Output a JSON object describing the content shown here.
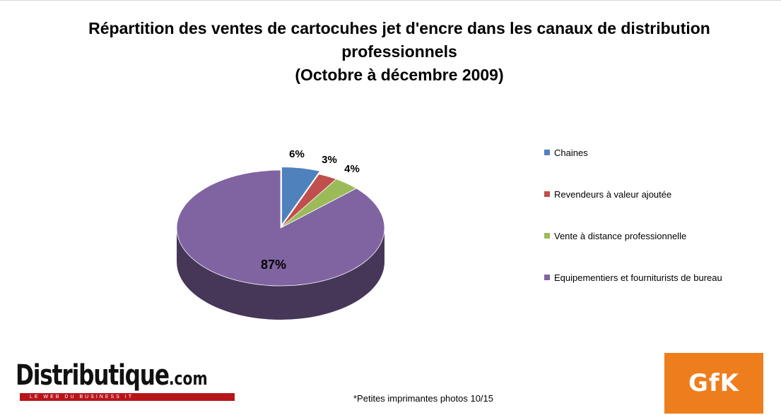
{
  "chart_data": {
    "type": "pie",
    "title_lines": [
      "Répartition des ventes de cartocuhes jet d'encre dans les canaux de distribution",
      "professionnels",
      "(Octobre à décembre 2009)"
    ],
    "slices": [
      {
        "name": "Chaines",
        "value": 6,
        "label": "6%",
        "color": "#4f81bd"
      },
      {
        "name": "Revendeurs à valeur ajoutée",
        "value": 3,
        "label": "3%",
        "color": "#c0504d"
      },
      {
        "name": "Vente à distance professionnelle",
        "value": 4,
        "label": "4%",
        "color": "#9bbb59"
      },
      {
        "name": "Equipementiers et fourniturists de bureau",
        "value": 87,
        "label": "87%",
        "color": "#8064a2"
      }
    ],
    "legend_position": "right",
    "style": "3d"
  },
  "footnote": "*Petites imprimantes photos  10/15",
  "logos": {
    "distributique": {
      "word": "Distributique",
      "suffix": ".com",
      "tagline": "LE WEB DU BUSINESS IT"
    },
    "gfk": {
      "text": "GfK"
    }
  }
}
